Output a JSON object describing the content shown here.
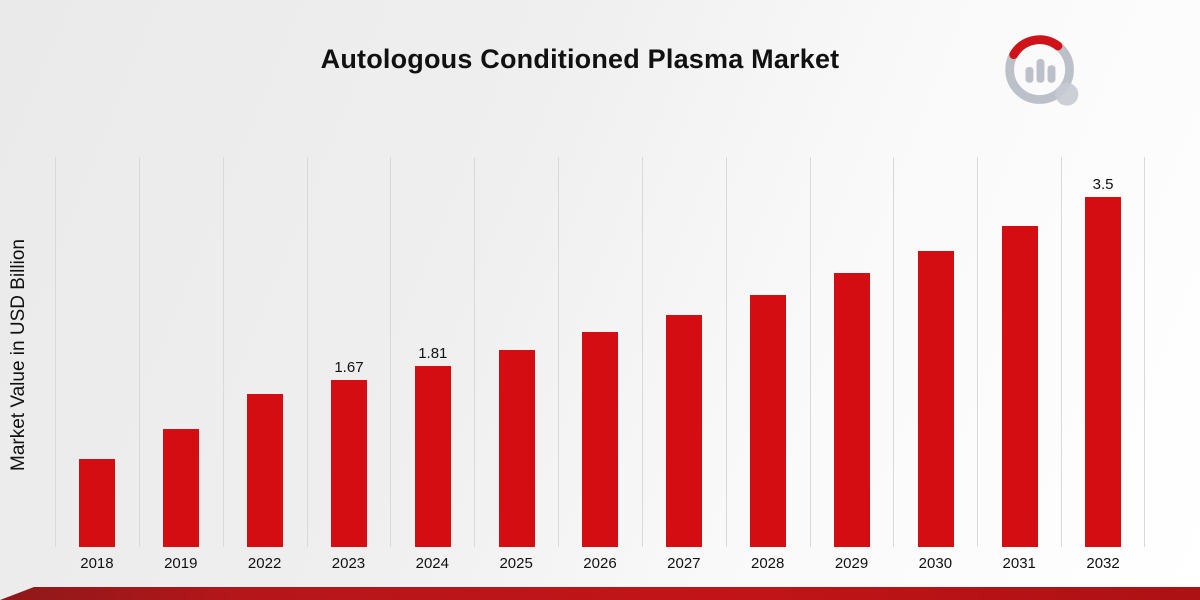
{
  "chart_data": {
    "type": "bar",
    "title": "Autologous Conditioned Plasma Market",
    "ylabel": "Market Value in USD Billion",
    "xlabel": "",
    "categories": [
      "2018",
      "2019",
      "2022",
      "2023",
      "2024",
      "2025",
      "2026",
      "2027",
      "2028",
      "2029",
      "2030",
      "2031",
      "2032"
    ],
    "values": [
      0.88,
      1.18,
      1.53,
      1.67,
      1.81,
      1.97,
      2.15,
      2.32,
      2.52,
      2.74,
      2.96,
      3.21,
      3.5
    ],
    "bar_labels": [
      "",
      "",
      "",
      "1.67",
      "1.81",
      "",
      "",
      "",
      "",
      "",
      "",
      "",
      "3.5"
    ],
    "ylim": [
      0,
      3.9
    ],
    "bar_color": "#d40d12",
    "grid": "vertical-gridlines",
    "legend": "none"
  },
  "colors": {
    "accent_red": "#c21418",
    "grid_line": "#d9d9d9",
    "text": "#111111",
    "logo_gray": "#bcc0c8"
  }
}
